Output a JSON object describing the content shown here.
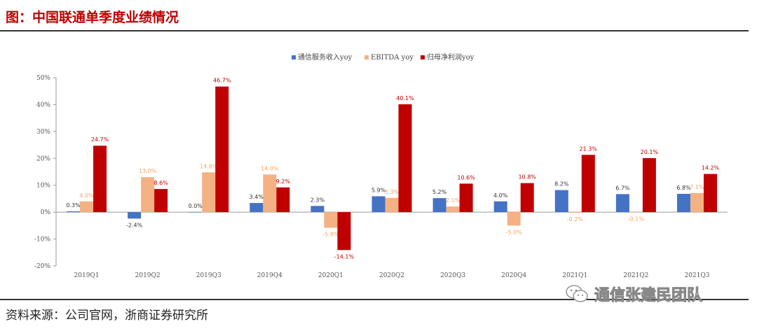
{
  "title": "图：中国联通单季度业绩情况",
  "source": "资料来源：公司官网，浙商证券研究所",
  "watermark": "通信张建民团队",
  "chart_data": {
    "type": "bar",
    "categories": [
      "2019Q1",
      "2019Q2",
      "2019Q3",
      "2019Q4",
      "2020Q1",
      "2020Q2",
      "2020Q3",
      "2020Q4",
      "2021Q1",
      "2021Q2",
      "2021Q3"
    ],
    "series": [
      {
        "name": "通信服务收入yoy",
        "color": "#4472c4",
        "values": [
          0.3,
          -2.4,
          0.0,
          3.4,
          2.3,
          5.9,
          5.2,
          4.0,
          8.2,
          6.7,
          6.8
        ],
        "labels": [
          "0.3%",
          "-2.4%",
          "0.0%",
          "3.4%",
          "2.3%",
          "5.9%",
          "5.2%",
          "4.0%",
          "8.2%",
          "6.7%",
          "6.8%"
        ]
      },
      {
        "name": "EBITDA yoy",
        "color": "#f4b183",
        "values": [
          4.0,
          13.0,
          14.8,
          14.0,
          -5.8,
          5.3,
          2.1,
          -5.0,
          -0.2,
          -0.1,
          7.1
        ],
        "labels": [
          "4.0%",
          "13.0%",
          "14.8%",
          "14.0%",
          "-5.8%",
          "5.3%",
          "2.1%",
          "-5.0%",
          "-0.2%",
          "-0.1%",
          "7.1%"
        ]
      },
      {
        "name": "归母净利润yoy",
        "color": "#c00000",
        "values": [
          24.7,
          8.6,
          46.7,
          9.2,
          -14.1,
          40.1,
          10.6,
          10.8,
          21.3,
          20.1,
          14.2
        ],
        "labels": [
          "24.7%",
          "8.6%",
          "46.7%",
          "9.2%",
          "-14.1%",
          "40.1%",
          "10.6%",
          "10.8%",
          "21.3%",
          "20.1%",
          "14.2%"
        ]
      }
    ],
    "ylim": [
      -20,
      50
    ],
    "yticks": [
      -20,
      -10,
      0,
      10,
      20,
      30,
      40,
      50
    ],
    "ytick_labels": [
      "-20%",
      "-10%",
      "0%",
      "10%",
      "20%",
      "30%",
      "40%",
      "50%"
    ],
    "label_colors": [
      "#333333",
      "#f4a460",
      "#c00000"
    ],
    "legend_position": "top-center",
    "grid": false
  }
}
